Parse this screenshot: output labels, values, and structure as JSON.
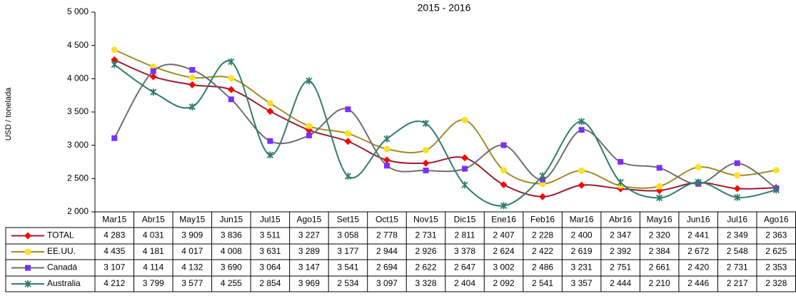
{
  "chart_data": {
    "type": "line",
    "title": "2015 - 2016",
    "y_label": "USD / tonelada",
    "categories": [
      "Mar15",
      "Abr15",
      "May15",
      "Jun15",
      "Jul15",
      "Ago15",
      "Set15",
      "Oct15",
      "Nov15",
      "Dic15",
      "Ene16",
      "Feb16",
      "Mar16",
      "Abr16",
      "May16",
      "Jun16",
      "Jul16",
      "Ago16"
    ],
    "ylim": [
      2000,
      5000
    ],
    "yticks": [
      {
        "value": 2000,
        "label": "2 000"
      },
      {
        "value": 2500,
        "label": "2 500"
      },
      {
        "value": 3000,
        "label": "3 000"
      },
      {
        "value": 3500,
        "label": "3 500"
      },
      {
        "value": 4000,
        "label": "4 000"
      },
      {
        "value": 4500,
        "label": "4 500"
      },
      {
        "value": 5000,
        "label": "5 000"
      }
    ],
    "smooth": true,
    "series": [
      {
        "name": "TOTAL",
        "color": "#9b1b30",
        "marker": "diamond",
        "marker_color": "#ff0000",
        "values": [
          4283,
          4031,
          3909,
          3836,
          3511,
          3227,
          3058,
          2778,
          2731,
          2811,
          2407,
          2228,
          2400,
          2347,
          2320,
          2441,
          2349,
          2363
        ],
        "value_labels": [
          "4 283",
          "4 031",
          "3 909",
          "3 836",
          "3 511",
          "3 227",
          "3 058",
          "2 778",
          "2 731",
          "2 811",
          "2 407",
          "2 228",
          "2 400",
          "2 347",
          "2 320",
          "2 441",
          "2 349",
          "2 363"
        ]
      },
      {
        "name": "EE.UU.",
        "color": "#a08c28",
        "marker": "circle",
        "marker_color": "#ffe020",
        "values": [
          4435,
          4181,
          4017,
          4008,
          3631,
          3289,
          3177,
          2944,
          2926,
          3378,
          2624,
          2422,
          2619,
          2392,
          2384,
          2672,
          2548,
          2625
        ],
        "value_labels": [
          "4 435",
          "4 181",
          "4 017",
          "4 008",
          "3 631",
          "3 289",
          "3 177",
          "2 944",
          "2 926",
          "3 378",
          "2 624",
          "2 422",
          "2 619",
          "2 392",
          "2 384",
          "2 672",
          "2 548",
          "2 625"
        ]
      },
      {
        "name": "Canadá",
        "color": "#6d6d6d",
        "marker": "square",
        "marker_color": "#7b2fff",
        "values": [
          3107,
          4114,
          4132,
          3690,
          3064,
          3147,
          3541,
          2694,
          2622,
          2647,
          3002,
          2486,
          3231,
          2751,
          2661,
          2420,
          2731,
          2353
        ],
        "value_labels": [
          "3 107",
          "4 114",
          "4 132",
          "3 690",
          "3 064",
          "3 147",
          "3 541",
          "2 694",
          "2 622",
          "2 647",
          "3 002",
          "2 486",
          "3 231",
          "2 751",
          "2 661",
          "2 420",
          "2 731",
          "2 353"
        ]
      },
      {
        "name": "Australia",
        "color": "#2e7d6e",
        "marker": "star",
        "marker_color": "#2e7d6e",
        "values": [
          4212,
          3799,
          3577,
          4255,
          2854,
          3969,
          2534,
          3097,
          3328,
          2404,
          2092,
          2541,
          3357,
          2444,
          2210,
          2446,
          2217,
          2328
        ],
        "value_labels": [
          "4 212",
          "3 799",
          "3 577",
          "4 255",
          "2 854",
          "3 969",
          "2 534",
          "3 097",
          "3 328",
          "2 404",
          "2 092",
          "2 541",
          "3 357",
          "2 444",
          "2 210",
          "2 446",
          "2 217",
          "2 328"
        ]
      }
    ]
  }
}
